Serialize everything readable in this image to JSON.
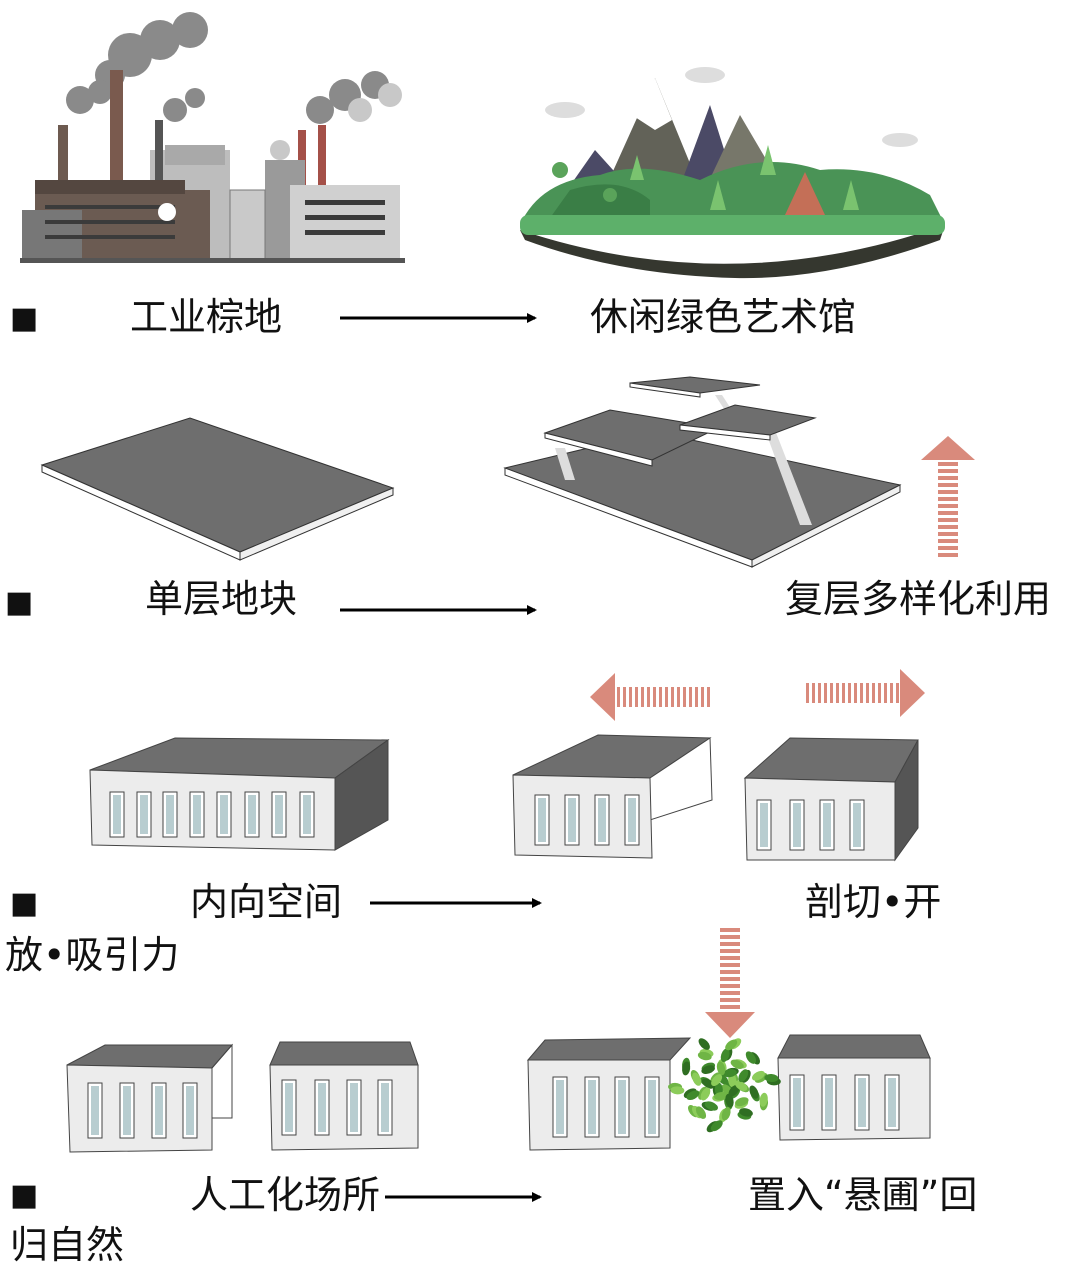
{
  "rows": [
    {
      "bullet": "■",
      "from": "工业棕地",
      "to": "休闲绿色艺术馆"
    },
    {
      "bullet": "■",
      "from": "单层地块",
      "to": "复层多样化利用"
    },
    {
      "bullet": "■",
      "from": "内向空间",
      "to": "剖切•开",
      "to_cont": "放•吸引力"
    },
    {
      "bullet": "■",
      "from": "人工化场所",
      "to": "置入“悬圃”回",
      "to_cont": "归自然"
    }
  ]
}
